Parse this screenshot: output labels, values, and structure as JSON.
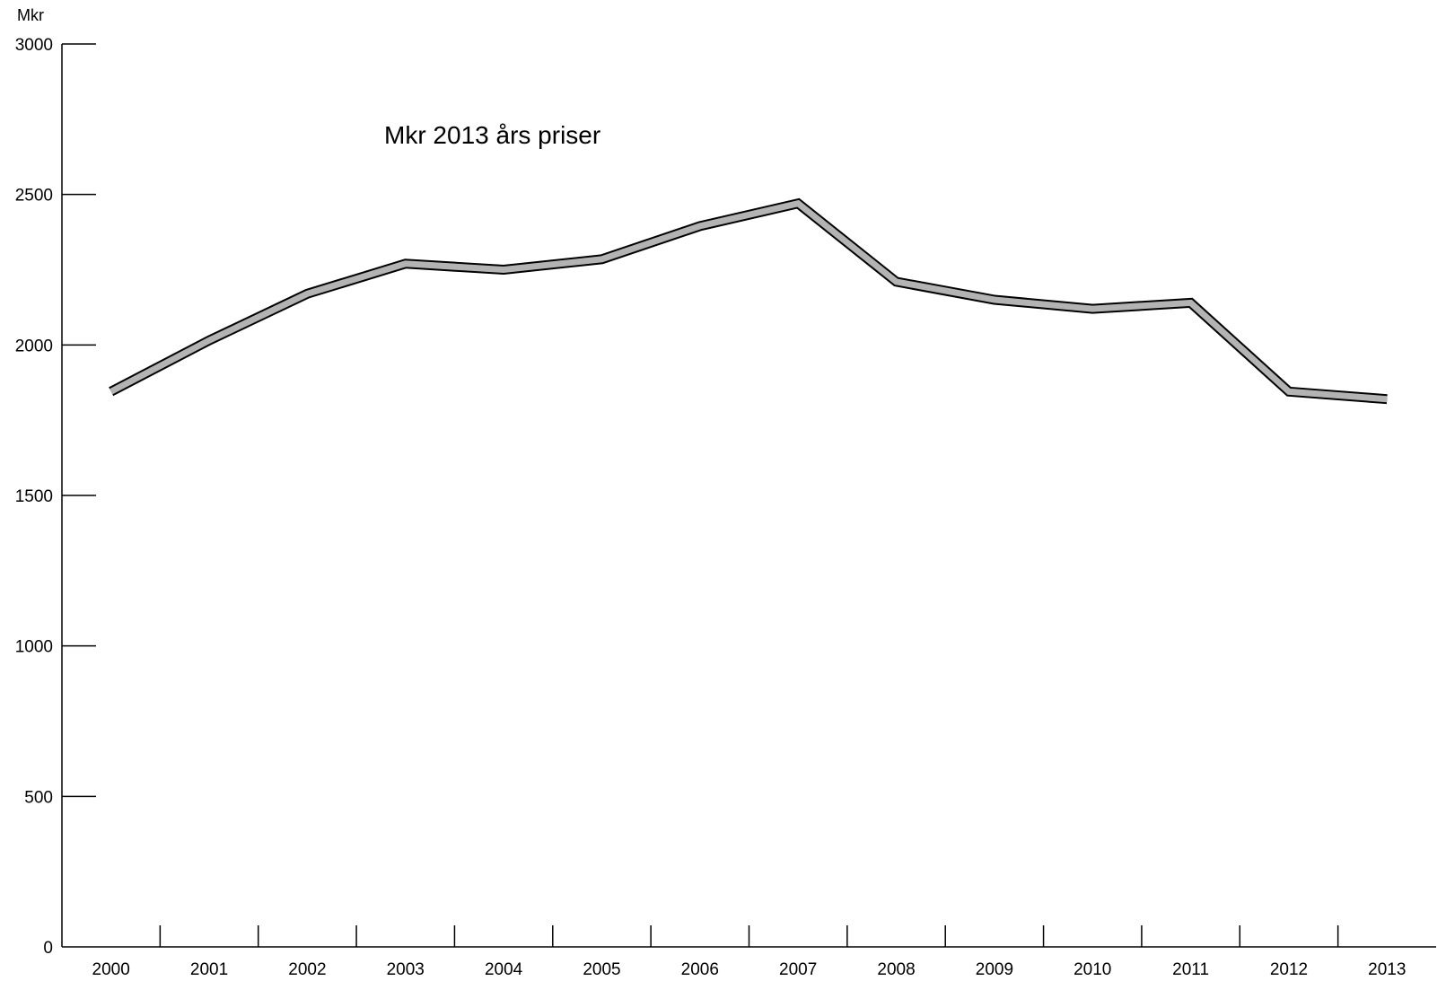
{
  "chart_data": {
    "type": "line",
    "title": "",
    "xlabel": "",
    "ylabel": "Mkr",
    "annotation": "Mkr 2013 års priser",
    "categories": [
      "2000",
      "2001",
      "2002",
      "2003",
      "2004",
      "2005",
      "2006",
      "2007",
      "2008",
      "2009",
      "2010",
      "2011",
      "2012",
      "2013"
    ],
    "yticks": [
      "0",
      "500",
      "1000",
      "1500",
      "2000",
      "2500",
      "3000"
    ],
    "ylim": [
      0,
      3000
    ],
    "grid": false,
    "legend": "none",
    "series": [
      {
        "values": [
          1845,
          2015,
          2170,
          2270,
          2250,
          2285,
          2395,
          2470,
          2210,
          2150,
          2120,
          2140,
          1845,
          1820
        ]
      }
    ],
    "colors": {
      "line_fill": "#b3b3b3",
      "line_outline": "#000000",
      "axis": "#000000"
    }
  }
}
